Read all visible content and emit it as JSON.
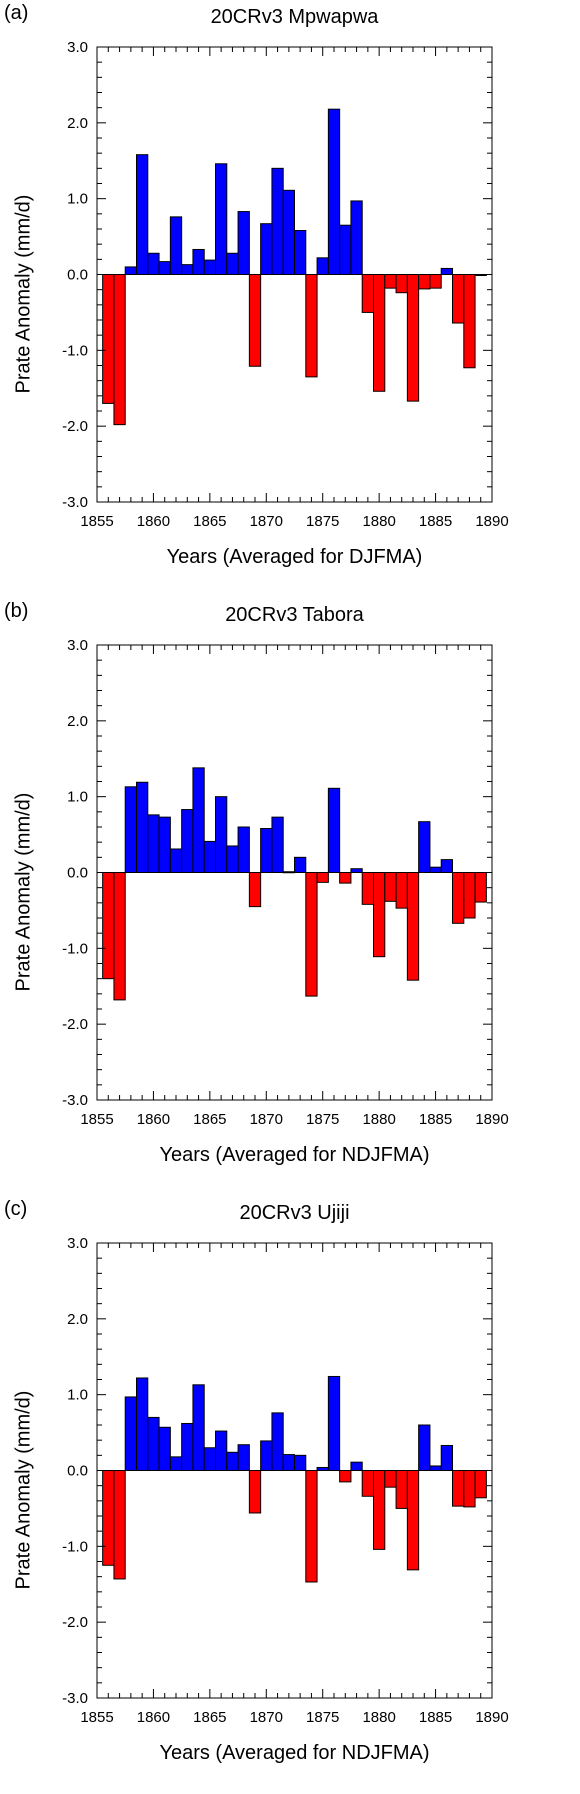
{
  "chart_data": [
    {
      "type": "bar",
      "panel_label": "(a)",
      "title": "20CRv3 Mpwapwa",
      "xlabel": "Years (Averaged for DJFMA)",
      "ylabel": "Prate Anomaly (mm/d)",
      "xlim": [
        1855,
        1890
      ],
      "ylim": [
        -3.0,
        3.0
      ],
      "xticks": [
        "1855",
        "1860",
        "1865",
        "1870",
        "1875",
        "1880",
        "1885",
        "1890"
      ],
      "yticks": [
        "3.0",
        "2.0",
        "1.0",
        "0.0",
        "-1.0",
        "-2.0",
        "-3.0"
      ],
      "positive_color": "#0000ff",
      "negative_color": "#ff0000",
      "x": [
        1856,
        1857,
        1858,
        1859,
        1860,
        1861,
        1862,
        1863,
        1864,
        1865,
        1866,
        1867,
        1868,
        1869,
        1870,
        1871,
        1872,
        1873,
        1874,
        1875,
        1876,
        1877,
        1878,
        1879,
        1880,
        1881,
        1882,
        1883,
        1884,
        1885,
        1886,
        1887,
        1888,
        1889
      ],
      "values": [
        -1.7,
        -1.98,
        0.1,
        1.58,
        0.28,
        0.17,
        0.76,
        0.13,
        0.33,
        0.19,
        1.46,
        0.28,
        0.83,
        -1.21,
        0.67,
        1.4,
        1.11,
        0.58,
        -1.35,
        0.22,
        2.18,
        0.65,
        0.97,
        -0.5,
        -1.54,
        -0.18,
        -0.24,
        -1.67,
        -0.19,
        -0.18,
        0.08,
        -0.64,
        -1.23,
        0.0
      ]
    },
    {
      "type": "bar",
      "panel_label": "(b)",
      "title": "20CRv3 Tabora",
      "xlabel": "Years (Averaged for NDJFMA)",
      "ylabel": "Prate Anomaly (mm/d)",
      "xlim": [
        1855,
        1890
      ],
      "ylim": [
        -3.0,
        3.0
      ],
      "xticks": [
        "1855",
        "1860",
        "1865",
        "1870",
        "1875",
        "1880",
        "1885",
        "1890"
      ],
      "yticks": [
        "3.0",
        "2.0",
        "1.0",
        "0.0",
        "-1.0",
        "-2.0",
        "-3.0"
      ],
      "positive_color": "#0000ff",
      "negative_color": "#ff0000",
      "x": [
        1856,
        1857,
        1858,
        1859,
        1860,
        1861,
        1862,
        1863,
        1864,
        1865,
        1866,
        1867,
        1868,
        1869,
        1870,
        1871,
        1872,
        1873,
        1874,
        1875,
        1876,
        1877,
        1878,
        1879,
        1880,
        1881,
        1882,
        1883,
        1884,
        1885,
        1886,
        1887,
        1888,
        1889
      ],
      "values": [
        -1.4,
        -1.68,
        1.13,
        1.19,
        0.76,
        0.73,
        0.31,
        0.83,
        1.38,
        0.41,
        1.0,
        0.35,
        0.6,
        -0.45,
        0.58,
        0.73,
        0.01,
        0.2,
        -1.63,
        -0.13,
        1.11,
        -0.14,
        0.05,
        -0.42,
        -1.11,
        -0.38,
        -0.47,
        -1.42,
        0.67,
        0.07,
        0.17,
        -0.67,
        -0.6,
        -0.39
      ]
    },
    {
      "type": "bar",
      "panel_label": "(c)",
      "title": "20CRv3 Ujiji",
      "xlabel": "Years (Averaged for NDJFMA)",
      "ylabel": "Prate Anomaly (mm/d)",
      "xlim": [
        1855,
        1890
      ],
      "ylim": [
        -3.0,
        3.0
      ],
      "xticks": [
        "1855",
        "1860",
        "1865",
        "1870",
        "1875",
        "1880",
        "1885",
        "1890"
      ],
      "yticks": [
        "3.0",
        "2.0",
        "1.0",
        "0.0",
        "-1.0",
        "-2.0",
        "-3.0"
      ],
      "positive_color": "#0000ff",
      "negative_color": "#ff0000",
      "x": [
        1856,
        1857,
        1858,
        1859,
        1860,
        1861,
        1862,
        1863,
        1864,
        1865,
        1866,
        1867,
        1868,
        1869,
        1870,
        1871,
        1872,
        1873,
        1874,
        1875,
        1876,
        1877,
        1878,
        1879,
        1880,
        1881,
        1882,
        1883,
        1884,
        1885,
        1886,
        1887,
        1888,
        1889
      ],
      "values": [
        -1.25,
        -1.43,
        0.97,
        1.22,
        0.7,
        0.57,
        0.18,
        0.62,
        1.13,
        0.3,
        0.52,
        0.24,
        0.34,
        -0.56,
        0.39,
        0.76,
        0.21,
        0.2,
        -1.47,
        0.04,
        1.24,
        -0.15,
        0.11,
        -0.34,
        -1.04,
        -0.22,
        -0.5,
        -1.31,
        0.6,
        0.06,
        0.33,
        -0.47,
        -0.48,
        -0.36
      ]
    }
  ]
}
